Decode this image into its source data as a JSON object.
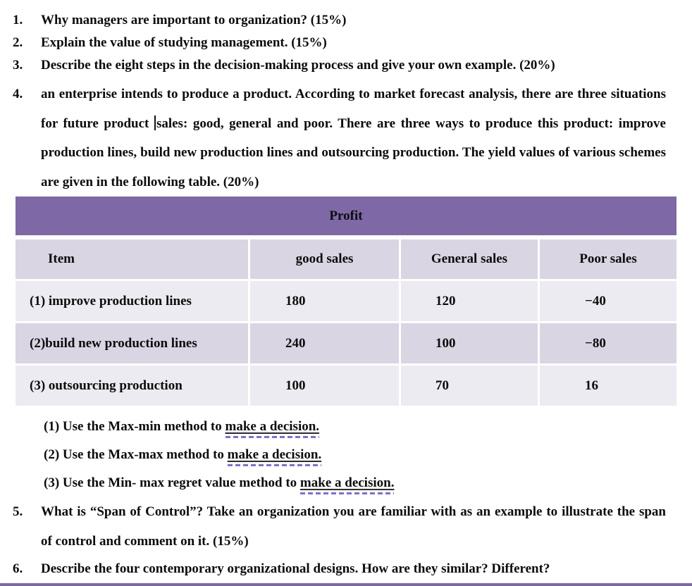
{
  "questions": {
    "q1": {
      "num": "1.",
      "text": "Why managers are important to organization? (15%)"
    },
    "q2": {
      "num": "2.",
      "text": "Explain the value of studying management. (15%)"
    },
    "q3": {
      "num": "3.",
      "text": "Describe the eight steps in the decision-making process and give your own example. (20%)"
    },
    "q4": {
      "num": "4.",
      "before_caret": "an enterprise intends to produce a product. According to market forecast analysis, there are three situations for future product ",
      "after_caret": "sales: good, general and poor. There are three ways to produce this product: improve production lines, build new production lines and outsourcing production. The yield values of various schemes are given in the following table. (20%)"
    },
    "q5": {
      "num": "5.",
      "text": "What is “Span of Control”? Take an organization you are familiar with as an example to illustrate the span of control and comment on it. (15%)"
    },
    "q6": {
      "num": "6.",
      "text": "Describe the four contemporary organizational designs. How are they similar? Different?"
    }
  },
  "sub_questions": [
    {
      "prefix": "(1) Use the Max-min method to ",
      "underlined": "make a decision."
    },
    {
      "prefix": "(2) Use the Max-max method to ",
      "underlined": "make a decision."
    },
    {
      "prefix": "(3) Use the Min- max regret value method to ",
      "underlined": "make a decision."
    }
  ],
  "table": {
    "title": "Profit",
    "headers": [
      "Item",
      "good sales",
      "General sales",
      "Poor sales"
    ],
    "rows": [
      {
        "item": "(1) improve production lines",
        "good_sales": "180",
        "general_sales": "120",
        "poor_sales": "−40"
      },
      {
        "item": "(2)build new production lines",
        "good_sales": "240",
        "general_sales": "100",
        "poor_sales": "−80"
      },
      {
        "item": "(3) outsourcing production",
        "good_sales": "100",
        "general_sales": "70",
        "poor_sales": "16"
      }
    ]
  },
  "colors": {
    "banner_purple": "#7e68a6",
    "row_lavender": "#d9d5e3",
    "row_light": "#ecebf1",
    "grammar_dash": "#7a6fdd"
  }
}
